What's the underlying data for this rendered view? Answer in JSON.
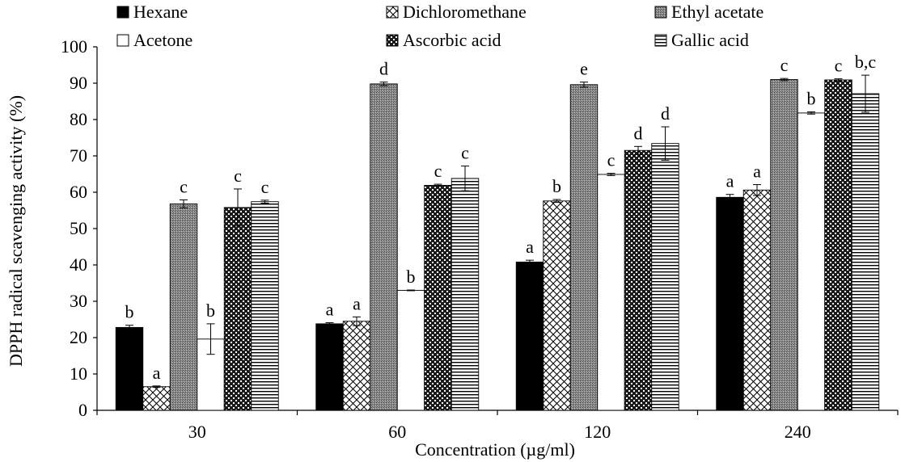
{
  "chart_data": {
    "type": "bar",
    "xlabel": "Concentration (µg/ml)",
    "ylabel": "DPPH radical scavenging activity (%)",
    "ylim": [
      0,
      100
    ],
    "ytick_step": 10,
    "categories": [
      "30",
      "60",
      "120",
      "240"
    ],
    "grid": false,
    "legend_position": "top",
    "series": [
      {
        "name": "Hexane",
        "pattern": "solid-black",
        "values": [
          22.8,
          23.8,
          40.8,
          58.6
        ],
        "errors": [
          0.6,
          0.3,
          0.5,
          0.8
        ],
        "labels": [
          "b",
          "a",
          "a",
          "a"
        ]
      },
      {
        "name": "Dichloromethane",
        "pattern": "crosshatch-light",
        "values": [
          6.5,
          24.5,
          57.6,
          60.6
        ],
        "errors": [
          0.2,
          1.2,
          0.4,
          1.5
        ],
        "labels": [
          "a",
          "a",
          "b",
          "a"
        ]
      },
      {
        "name": "Ethyl acetate",
        "pattern": "dotted-gray",
        "values": [
          56.8,
          89.8,
          89.6,
          91.0
        ],
        "errors": [
          1.1,
          0.5,
          0.7,
          0.3
        ],
        "labels": [
          "c",
          "d",
          "e",
          "c"
        ]
      },
      {
        "name": "Acetone",
        "pattern": "white",
        "values": [
          19.6,
          33.0,
          64.9,
          81.8
        ],
        "errors": [
          4.2,
          0.1,
          0.3,
          0.3
        ],
        "labels": [
          "b",
          "b",
          "c",
          "b"
        ]
      },
      {
        "name": "Ascorbic acid",
        "pattern": "checker-dark",
        "values": [
          55.8,
          61.9,
          71.5,
          90.9
        ],
        "errors": [
          5.1,
          0.3,
          1.1,
          0.3
        ],
        "labels": [
          "c",
          "c",
          "d",
          "c"
        ]
      },
      {
        "name": "Gallic acid",
        "pattern": "horizontal-lines",
        "values": [
          57.4,
          63.8,
          73.4,
          87.1
        ],
        "errors": [
          0.4,
          3.4,
          4.6,
          5.1
        ],
        "labels": [
          "c",
          "c",
          "d",
          "b,c"
        ]
      }
    ]
  }
}
